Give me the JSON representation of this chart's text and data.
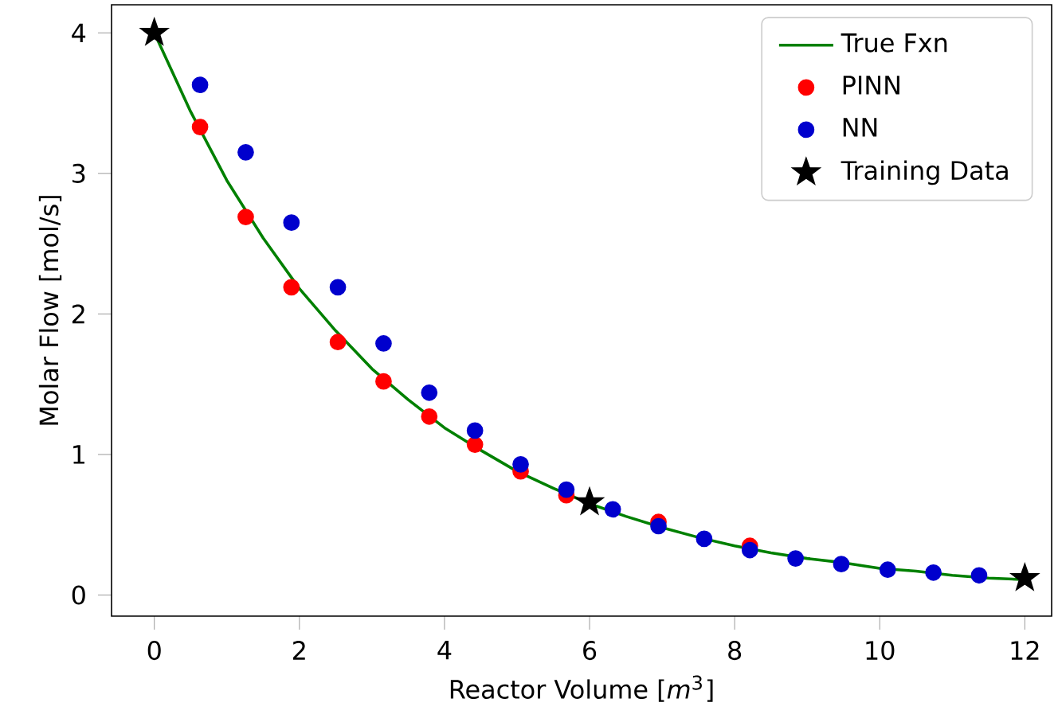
{
  "chart_data": {
    "type": "scatter",
    "xlabel": "Reactor Volume [*m*$^{3}$]",
    "ylabel": "Molar Flow [mol/s]",
    "xlim": [
      -0.59,
      12.37
    ],
    "ylim": [
      -0.15,
      4.2
    ],
    "xticks": [
      0,
      2,
      4,
      6,
      8,
      10,
      12
    ],
    "yticks": [
      0,
      1,
      2,
      3,
      4
    ],
    "legend": "top right",
    "grid": false,
    "series": [
      {
        "name": "True Fxn",
        "type": "line",
        "color": "#008000",
        "marker": "none",
        "x": [
          0,
          0.5,
          1,
          1.5,
          2,
          2.5,
          3,
          3.5,
          4,
          4.5,
          5,
          5.5,
          6,
          6.5,
          7,
          7.5,
          8,
          8.5,
          9,
          9.5,
          10,
          10.5,
          11,
          11.5,
          12
        ],
        "values": [
          4.0,
          3.44,
          2.95,
          2.54,
          2.18,
          1.88,
          1.61,
          1.39,
          1.19,
          1.03,
          0.88,
          0.76,
          0.65,
          0.56,
          0.48,
          0.41,
          0.35,
          0.3,
          0.26,
          0.23,
          0.19,
          0.17,
          0.14,
          0.12,
          0.11
        ]
      },
      {
        "name": "PINN",
        "color": "#ff0000",
        "marker": "circle",
        "x": [
          0.63,
          1.26,
          1.89,
          2.53,
          3.16,
          3.79,
          4.42,
          5.05,
          5.68,
          6.95,
          8.21
        ],
        "values": [
          3.33,
          2.69,
          2.19,
          1.8,
          1.52,
          1.27,
          1.07,
          0.88,
          0.71,
          0.52,
          0.35
        ]
      },
      {
        "name": "NN",
        "color": "#0000cd",
        "marker": "circle",
        "x": [
          0.63,
          1.26,
          1.89,
          2.53,
          3.16,
          3.79,
          4.42,
          5.05,
          5.68,
          6.32,
          6.95,
          7.58,
          8.21,
          8.84,
          9.47,
          10.11,
          10.74,
          11.37
        ],
        "values": [
          3.63,
          3.15,
          2.65,
          2.19,
          1.79,
          1.44,
          1.17,
          0.93,
          0.75,
          0.61,
          0.49,
          0.4,
          0.32,
          0.26,
          0.22,
          0.18,
          0.16,
          0.14
        ]
      },
      {
        "name": "Training Data",
        "color": "#000000",
        "marker": "star",
        "x": [
          0,
          6,
          12
        ],
        "values": [
          4.0,
          0.66,
          0.12
        ]
      }
    ]
  }
}
